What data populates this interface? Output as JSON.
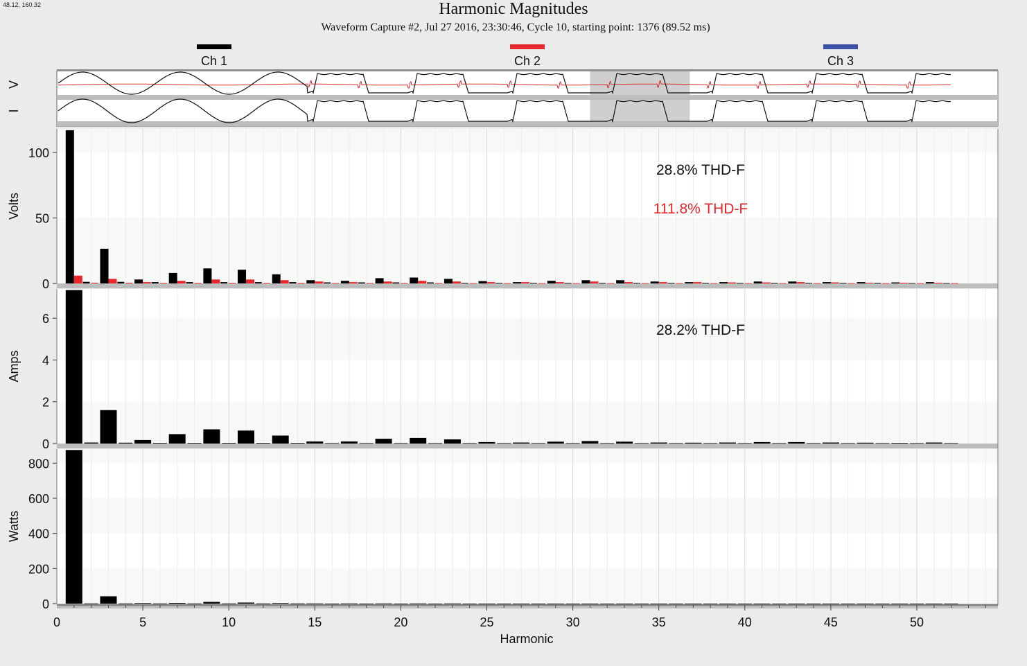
{
  "cursor_readout": "48.12, 160.32",
  "chart_data": {
    "type": "bar",
    "title": "Harmonic Magnitudes",
    "subtitle": "Waveform Capture #2, Jul 27 2016, 23:30:46, Cycle 10,  starting point: 1376  (89.52 ms)",
    "xlabel": "Harmonic",
    "xlim": [
      0,
      54.5
    ],
    "xticks": [
      "0",
      "5",
      "10",
      "15",
      "20",
      "25",
      "30",
      "35",
      "40",
      "45",
      "50"
    ],
    "legend": {
      "placement": "top",
      "items": [
        {
          "name": "Ch 1",
          "color": "#000000"
        },
        {
          "name": "Ch 2",
          "color": "#e8262b"
        },
        {
          "name": "Ch 3",
          "color": "#3a4fa3"
        }
      ]
    },
    "waveform_strip": {
      "labels": [
        "V",
        "I"
      ],
      "highlight_window_harmonic": [
        31,
        36.8
      ]
    },
    "panels": [
      {
        "ylabel": "Volts",
        "ylim": [
          0,
          118
        ],
        "yticks": [
          "0",
          "50",
          "100"
        ],
        "annotations": [
          {
            "text": "28.8% THD-F",
            "color": "#111111"
          },
          {
            "text": "111.8% THD-F",
            "color": "#e8262b"
          }
        ],
        "series": [
          {
            "name": "Ch 1",
            "color": "#000000",
            "x": [
              1,
              2,
              3,
              4,
              5,
              6,
              7,
              8,
              9,
              10,
              11,
              12,
              13,
              14,
              15,
              16,
              17,
              18,
              19,
              20,
              21,
              22,
              23,
              24,
              25,
              26,
              27,
              28,
              29,
              30,
              31,
              32,
              33,
              34,
              35,
              36,
              37,
              38,
              39,
              40,
              41,
              42,
              43,
              44,
              45,
              46,
              47,
              48,
              49,
              50,
              51,
              52
            ],
            "values": [
              117,
              1.2,
              26.5,
              1.2,
              3,
              1,
              8,
              1,
              11.5,
              1,
              10.5,
              1,
              7,
              1,
              2.5,
              0.8,
              2,
              0.8,
              4,
              0.8,
              4.5,
              0.8,
              3.5,
              0.5,
              1.8,
              0.5,
              1,
              0.5,
              2,
              0.5,
              2.5,
              0.5,
              2.5,
              0.5,
              1.5,
              0.5,
              1,
              0.5,
              1,
              0.5,
              1.5,
              0.5,
              1.5,
              0.5,
              1,
              0.5,
              1,
              0.5,
              0.8,
              0.3,
              1,
              0.3
            ]
          },
          {
            "name": "Ch 2",
            "color": "#e8262b",
            "x": [
              1,
              2,
              3,
              4,
              5,
              6,
              7,
              8,
              9,
              10,
              11,
              12,
              13,
              14,
              15,
              16,
              17,
              18,
              19,
              20,
              21,
              22,
              23,
              24,
              25,
              26,
              27,
              28,
              29,
              30,
              31,
              32,
              33,
              34,
              35,
              36,
              37,
              38,
              39,
              40,
              41,
              42,
              43,
              44,
              45,
              46,
              47,
              48,
              49,
              50,
              51,
              52
            ],
            "values": [
              6,
              0.6,
              3.5,
              0.6,
              1,
              0.5,
              2,
              0.5,
              3,
              0.5,
              3,
              0.5,
              2.5,
              0.5,
              1.5,
              0.4,
              1,
              0.4,
              1.5,
              0.4,
              2,
              0.4,
              1.5,
              0.3,
              1,
              0.3,
              1,
              0.3,
              1,
              0.3,
              1.5,
              0.3,
              1,
              0.3,
              1,
              0.3,
              1,
              0.3,
              0.8,
              0.3,
              0.8,
              0.3,
              1,
              0.3,
              0.8,
              0.3,
              0.6,
              0.3,
              0.6,
              0.3,
              0.6,
              0.3
            ]
          }
        ]
      },
      {
        "ylabel": "Amps",
        "ylim": [
          0,
          7.4
        ],
        "yticks": [
          "0",
          "2",
          "4",
          "6"
        ],
        "annotations": [
          {
            "text": "28.2% THD-F",
            "color": "#111111"
          }
        ],
        "series": [
          {
            "name": "Ch 1",
            "color": "#000000",
            "x": [
              1,
              2,
              3,
              4,
              5,
              6,
              7,
              8,
              9,
              10,
              11,
              12,
              13,
              14,
              15,
              16,
              17,
              18,
              19,
              20,
              21,
              22,
              23,
              24,
              25,
              26,
              27,
              28,
              29,
              30,
              31,
              32,
              33,
              34,
              35,
              36,
              37,
              38,
              39,
              40,
              41,
              42,
              43,
              44,
              45,
              46,
              47,
              48,
              49,
              50,
              51,
              52
            ],
            "values": [
              7.35,
              0.05,
              1.6,
              0.04,
              0.17,
              0.03,
              0.45,
              0.03,
              0.68,
              0.03,
              0.62,
              0.03,
              0.38,
              0.03,
              0.1,
              0.02,
              0.1,
              0.02,
              0.23,
              0.02,
              0.27,
              0.02,
              0.2,
              0.02,
              0.07,
              0.02,
              0.05,
              0.02,
              0.09,
              0.02,
              0.12,
              0.02,
              0.09,
              0.02,
              0.05,
              0.02,
              0.04,
              0.02,
              0.05,
              0.02,
              0.07,
              0.02,
              0.07,
              0.02,
              0.05,
              0.02,
              0.04,
              0.02,
              0.03,
              0.02,
              0.05,
              0.02
            ]
          }
        ]
      },
      {
        "ylabel": "Watts",
        "ylim": [
          0,
          880
        ],
        "yticks": [
          "0",
          "200",
          "400",
          "600",
          "800"
        ],
        "annotations": [],
        "series": [
          {
            "name": "Ch 1",
            "color": "#000000",
            "x": [
              1,
              2,
              3,
              4,
              5,
              6,
              7,
              8,
              9,
              10,
              11,
              12,
              13,
              14,
              15,
              16,
              17,
              18,
              19,
              20,
              21,
              22,
              23,
              24,
              25,
              26,
              27,
              28,
              29,
              30,
              31,
              32,
              33,
              34,
              35,
              36,
              37,
              38,
              39,
              40,
              41,
              42,
              43,
              44,
              45,
              46,
              47,
              48,
              49,
              50,
              51,
              52
            ],
            "values": [
              875,
              1,
              42,
              1,
              3,
              1,
              4,
              1,
              10,
              1,
              6,
              1,
              3,
              1,
              1,
              0.5,
              1,
              0.5,
              1,
              0.5,
              1,
              0.5,
              1,
              0.5,
              0.5,
              0.5,
              0.5,
              0.5,
              0.5,
              0.5,
              0.5,
              0.5,
              0.5,
              0.5,
              0.5,
              0.5,
              0.5,
              0.5,
              0.5,
              0.5,
              0.5,
              0.5,
              0.5,
              0.5,
              0.5,
              0.5,
              0.5,
              0.5,
              0.5,
              0.5,
              0.5,
              0.5
            ]
          }
        ]
      }
    ]
  }
}
